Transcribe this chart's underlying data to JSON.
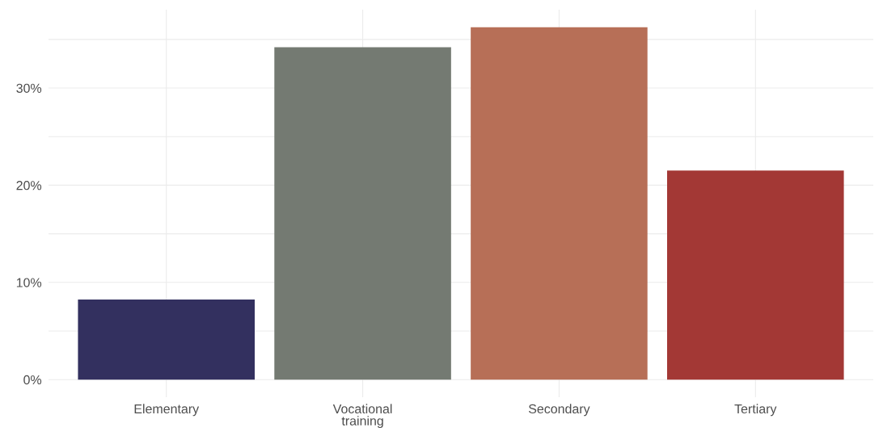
{
  "chart_data": {
    "type": "bar",
    "categories": [
      "Elementary",
      "Vocational\ntraining",
      "Secondary",
      "Tertiary"
    ],
    "values": [
      8.25,
      34.2,
      36.25,
      21.5
    ],
    "colors": [
      "#33305f",
      "#747a72",
      "#b76f57",
      "#a33835"
    ],
    "ylim": [
      -1.81,
      38.06
    ],
    "yticks": [
      {
        "value": 0,
        "label": "0%"
      },
      {
        "value": 5,
        "label": null
      },
      {
        "value": 10,
        "label": "10%"
      },
      {
        "value": 15,
        "label": null
      },
      {
        "value": 20,
        "label": "20%"
      },
      {
        "value": 25,
        "label": null
      },
      {
        "value": 30,
        "label": "30%"
      },
      {
        "value": 35,
        "label": null
      }
    ],
    "grid": true,
    "legend": false
  }
}
